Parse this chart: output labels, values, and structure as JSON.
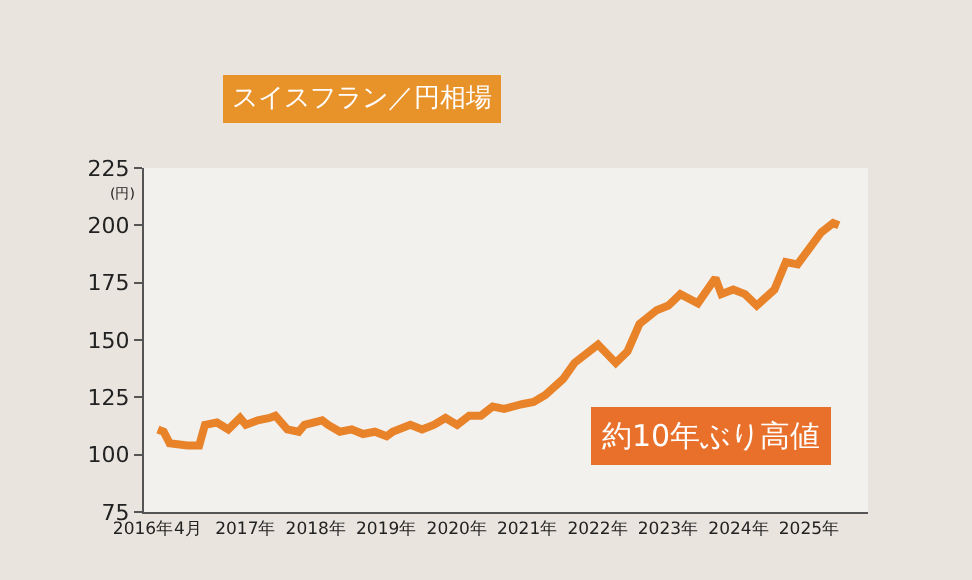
{
  "chart_data": {
    "type": "line",
    "title": "スイスフラン／円相場",
    "ylabel": "(円)",
    "annotations": [
      "約10年ぶり高値"
    ],
    "x": [
      "2016-04",
      "2016-05",
      "2016-06",
      "2016-09",
      "2016-11",
      "2016-12",
      "2017-02",
      "2017-04",
      "2017-06",
      "2017-07",
      "2017-09",
      "2017-11",
      "2017-12",
      "2018-02",
      "2018-04",
      "2018-05",
      "2018-08",
      "2018-09",
      "2018-11",
      "2019-01",
      "2019-03",
      "2019-05",
      "2019-07",
      "2019-08",
      "2019-11",
      "2020-01",
      "2020-03",
      "2020-05",
      "2020-07",
      "2020-09",
      "2020-11",
      "2021-01",
      "2021-03",
      "2021-06",
      "2021-08",
      "2021-10",
      "2022-01",
      "2022-03",
      "2022-07",
      "2022-10",
      "2022-12",
      "2023-02",
      "2023-05",
      "2023-07",
      "2023-09",
      "2023-12",
      "2024-03",
      "2024-04",
      "2024-06",
      "2024-08",
      "2024-10",
      "2025-01",
      "2025-03",
      "2025-05",
      "2025-07",
      "2025-09",
      "2025-11",
      "2025-12"
    ],
    "series": [
      {
        "color": "#e8832a",
        "values": [
          111,
          110,
          105,
          104,
          104,
          113,
          114,
          111,
          116,
          113,
          115,
          116,
          117,
          111,
          110,
          113,
          115,
          113,
          110,
          111,
          109,
          110,
          108,
          110,
          113,
          111,
          113,
          116,
          113,
          117,
          117,
          121,
          120,
          122,
          123,
          126,
          133,
          140,
          148,
          140,
          145,
          157,
          163,
          165,
          170,
          166,
          177,
          170,
          172,
          170,
          165,
          172,
          184,
          183,
          190,
          197,
          201,
          200
        ]
      }
    ],
    "xlim": [
      "2016-01-20",
      "2026-05-01"
    ],
    "xticks": [
      {
        "value": "2016-04-01",
        "label": "2016年4月"
      },
      {
        "value": "2017-07-01",
        "label": "2017年"
      },
      {
        "value": "2018-07-01",
        "label": "2018年"
      },
      {
        "value": "2019-07-01",
        "label": "2019年"
      },
      {
        "value": "2020-07-01",
        "label": "2020年"
      },
      {
        "value": "2021-07-01",
        "label": "2021年"
      },
      {
        "value": "2022-07-01",
        "label": "2022年"
      },
      {
        "value": "2023-07-01",
        "label": "2023年"
      },
      {
        "value": "2024-07-01",
        "label": "2024年"
      },
      {
        "value": "2025-07-01",
        "label": "2025年"
      }
    ],
    "ylim": [
      75,
      225
    ],
    "yticks": [
      75,
      100,
      125,
      150,
      175,
      200,
      225
    ],
    "grid": false,
    "marker": "none",
    "line_style": "solid"
  }
}
